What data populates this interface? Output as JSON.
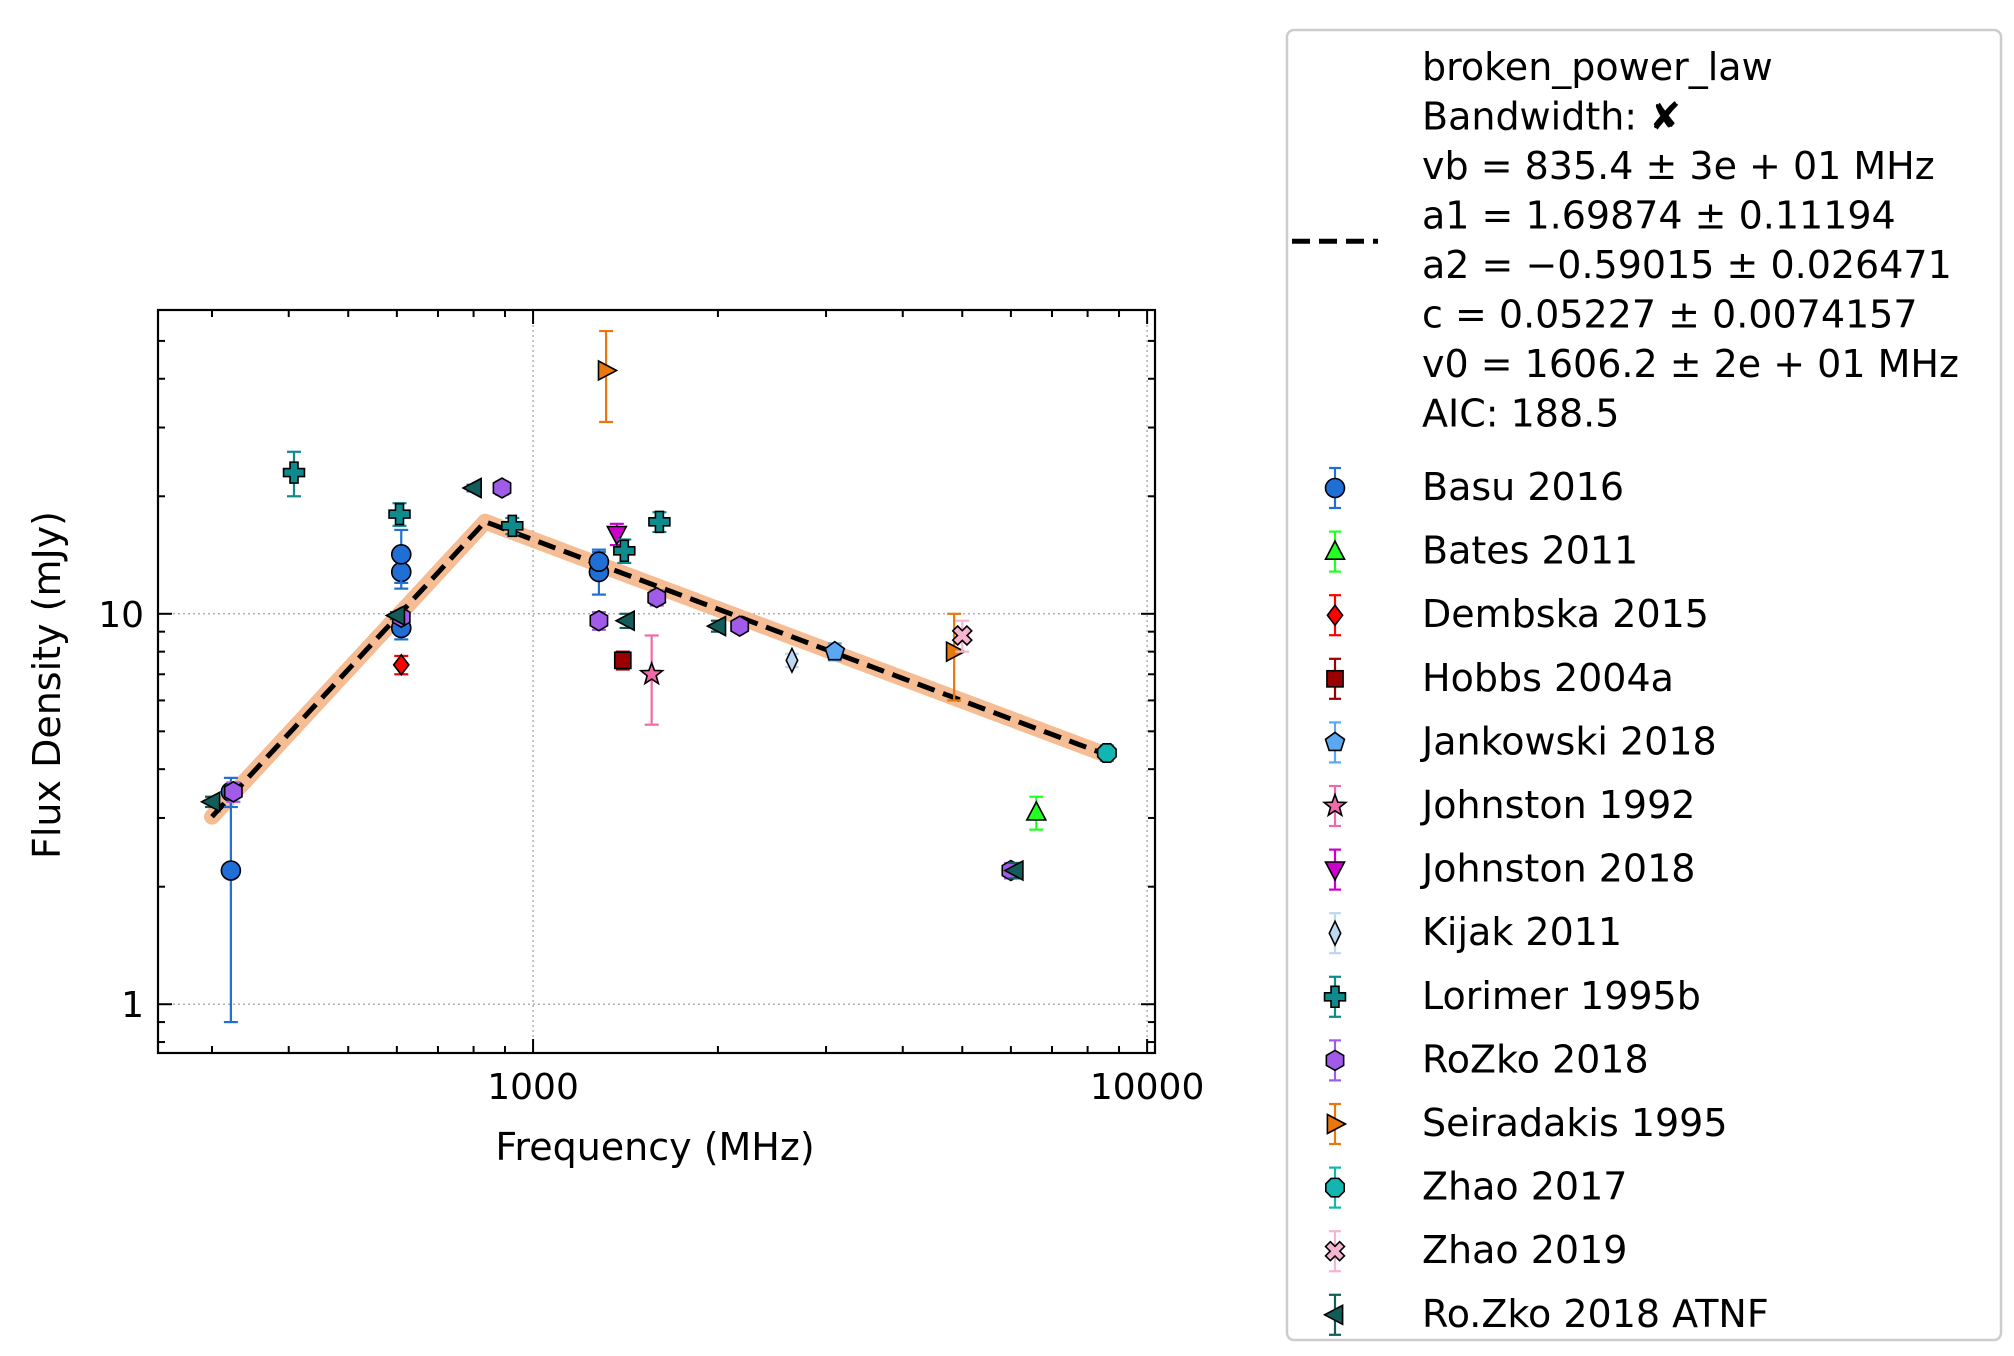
{
  "chart_data": {
    "type": "scatter",
    "xlabel": "Frequency (MHz)",
    "ylabel": "Flux Density (mJy)",
    "xscale": "log",
    "yscale": "log",
    "xlim": [
      245,
      10300
    ],
    "ylim": [
      0.75,
      60
    ],
    "xticks": [
      {
        "value": 1000,
        "label": "1000"
      },
      {
        "value": 10000,
        "label": "10000"
      }
    ],
    "yticks": [
      {
        "value": 1,
        "label": "1"
      },
      {
        "value": 10,
        "label": "10"
      }
    ],
    "grid": true,
    "legend_position": "outside-right",
    "fit": {
      "name": "broken_power_law",
      "info_lines": [
        "broken_power_law",
        "Bandwidth: ✘",
        "vb = 835.4 ± 3e + 01 MHz",
        "a1 = 1.69874 ± 0.11194",
        "a2 = −0.59015 ± 0.026471",
        "c = 0.05227 ± 0.0074157",
        "v0 = 1606.2 ± 2e + 01 MHz",
        "AIC: 188.5"
      ],
      "vb": 835.4,
      "a1": 1.69874,
      "a2": -0.59015,
      "c": 0.05227,
      "v0": 1606.2,
      "x_range": [
        300,
        8600
      ],
      "line_color": "#000000",
      "band_color": "#f4b183"
    },
    "series": [
      {
        "name": "Basu 2016",
        "marker": "circle",
        "color": "#1f6fd6",
        "ecolor": "#1f6fd6",
        "points": [
          [
            322,
            2.2,
            1.3
          ],
          [
            322,
            3.5,
            0.3
          ],
          [
            610,
            9.2,
            0.6
          ],
          [
            610,
            12.8,
            1.2
          ],
          [
            610,
            14.2,
            2.2
          ],
          [
            1280,
            12.8,
            1.6
          ],
          [
            1280,
            13.6,
            1.0
          ]
        ]
      },
      {
        "name": "Bates 2011",
        "marker": "triangle-up",
        "color": "#22ff22",
        "ecolor": "#22ff22",
        "points": [
          [
            6600,
            3.1,
            0.3
          ]
        ]
      },
      {
        "name": "Dembska 2015",
        "marker": "diamond",
        "color": "#ff0000",
        "ecolor": "#ff0000",
        "points": [
          [
            610,
            7.4,
            0.4
          ]
        ]
      },
      {
        "name": "Hobbs 2004a",
        "marker": "square",
        "color": "#9b0000",
        "ecolor": "#9b0000",
        "points": [
          [
            1400,
            7.6,
            0.4
          ]
        ]
      },
      {
        "name": "Jankowski 2018",
        "marker": "pentagon",
        "color": "#5aa7f2",
        "ecolor": "#5aa7f2",
        "points": [
          [
            3100,
            8.0,
            0.4
          ]
        ]
      },
      {
        "name": "Johnston 1992",
        "marker": "star",
        "color": "#f06aa8",
        "ecolor": "#f06aa8",
        "points": [
          [
            1560,
            7.0,
            1.8
          ]
        ]
      },
      {
        "name": "Johnston 2018",
        "marker": "triangle-down",
        "color": "#cc00cc",
        "ecolor": "#cc00cc",
        "points": [
          [
            1369,
            16.0,
            1.0
          ]
        ]
      },
      {
        "name": "Kijak 2011",
        "marker": "thin-diamond",
        "color": "#bcd7f2",
        "ecolor": "#bcd7f2",
        "points": [
          [
            2640,
            7.6,
            0.3
          ]
        ]
      },
      {
        "name": "Lorimer 1995b",
        "marker": "plus",
        "color": "#0f8b8d",
        "ecolor": "#0f8b8d",
        "points": [
          [
            408,
            23.0,
            3.0
          ],
          [
            606,
            18.0,
            1.2
          ],
          [
            925,
            16.8,
            0.8
          ],
          [
            1408,
            14.5,
            1.0
          ],
          [
            1606,
            17.2,
            1.0
          ]
        ]
      },
      {
        "name": "RoZko 2018",
        "marker": "hexagon",
        "color": "#a05be8",
        "ecolor": "#a05be8",
        "points": [
          [
            325,
            3.5,
            0.2
          ],
          [
            610,
            9.8,
            0.4
          ],
          [
            890,
            21.0,
            0.8
          ],
          [
            1280,
            9.6,
            0.5
          ],
          [
            1590,
            11.0,
            0.5
          ],
          [
            2170,
            9.3,
            0.3
          ],
          [
            6000,
            2.2,
            0.1
          ]
        ]
      },
      {
        "name": "Seiradakis 1995",
        "marker": "triangle-right",
        "color": "#e8770e",
        "ecolor": "#e8770e",
        "points": [
          [
            1315,
            42.0,
            11.0
          ],
          [
            4850,
            8.0,
            2.0
          ]
        ]
      },
      {
        "name": "Zhao 2017",
        "marker": "octagon",
        "color": "#12b5b0",
        "ecolor": "#12b5b0",
        "points": [
          [
            8600,
            4.4,
            0.2
          ]
        ]
      },
      {
        "name": "Zhao 2019",
        "marker": "cross",
        "color": "#f5b5d0",
        "ecolor": "#f5b5d0",
        "points": [
          [
            5000,
            8.8,
            0.8
          ]
        ]
      },
      {
        "name": "Ro.Zko 2018 ATNF",
        "marker": "triangle-left",
        "color": "#125c5a",
        "ecolor": "#125c5a",
        "points": [
          [
            300,
            3.3,
            0.1
          ],
          [
            800,
            21.0,
            0.4
          ],
          [
            1420,
            9.6,
            0.4
          ],
          [
            2000,
            9.3,
            0.3
          ],
          [
            6100,
            2.2,
            0.1
          ],
          [
            600,
            9.9,
            0.2
          ]
        ]
      }
    ]
  }
}
